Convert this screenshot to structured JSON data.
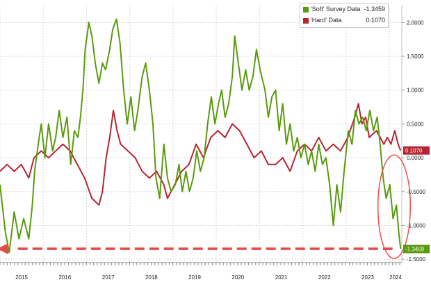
{
  "chart_data": {
    "type": "line",
    "x_range": [
      "2015-01-01",
      "2024-04-15"
    ],
    "ylim": [
      -1.55,
      2.25
    ],
    "ytick_labels": [
      "2.0000",
      "1.5000",
      "1.0000",
      "0.5000",
      "0.0000",
      "-0.5000",
      "-1.0000",
      "-1.5000"
    ],
    "ytick_values": [
      2.0,
      1.5,
      1.0,
      0.5,
      0.0,
      -0.5,
      -1.0,
      -1.5
    ],
    "xtick_labels": [
      "2015",
      "2016",
      "2017",
      "2018",
      "2019",
      "2020",
      "2021",
      "2022",
      "2023",
      "2024"
    ],
    "grid": true,
    "legend_position": "top-right",
    "series": [
      {
        "name": "'Soft' Survey Data",
        "last_value": "-1.3459",
        "color": "#5a9a0e",
        "points": [
          [
            "2015-01-01",
            -0.4
          ],
          [
            "2015-02-15",
            -1.1
          ],
          [
            "2015-03-20",
            -1.4
          ],
          [
            "2015-05-01",
            -0.8
          ],
          [
            "2015-06-10",
            -1.2
          ],
          [
            "2015-07-20",
            -0.9
          ],
          [
            "2015-09-01",
            -1.2
          ],
          [
            "2015-10-01",
            -0.7
          ],
          [
            "2015-10-20",
            -0.2
          ],
          [
            "2015-11-20",
            0.2
          ],
          [
            "2015-12-15",
            0.5
          ],
          [
            "2016-01-15",
            0.0
          ],
          [
            "2016-02-15",
            0.5
          ],
          [
            "2016-03-20",
            0.1
          ],
          [
            "2016-04-15",
            0.3
          ],
          [
            "2016-05-15",
            0.7
          ],
          [
            "2016-06-15",
            0.3
          ],
          [
            "2016-07-20",
            0.6
          ],
          [
            "2016-08-20",
            -0.1
          ],
          [
            "2016-09-20",
            0.4
          ],
          [
            "2016-10-20",
            0.3
          ],
          [
            "2016-11-10",
            0.6
          ],
          [
            "2016-12-01",
            1.0
          ],
          [
            "2016-12-20",
            1.6
          ],
          [
            "2017-01-20",
            2.0
          ],
          [
            "2017-02-15",
            1.8
          ],
          [
            "2017-03-15",
            1.4
          ],
          [
            "2017-04-15",
            1.1
          ],
          [
            "2017-05-15",
            1.4
          ],
          [
            "2017-06-10",
            1.3
          ],
          [
            "2017-07-15",
            1.6
          ],
          [
            "2017-08-10",
            1.9
          ],
          [
            "2017-09-10",
            2.05
          ],
          [
            "2017-10-10",
            1.7
          ],
          [
            "2017-11-10",
            1.0
          ],
          [
            "2017-12-10",
            0.5
          ],
          [
            "2018-01-10",
            0.9
          ],
          [
            "2018-02-10",
            0.4
          ],
          [
            "2018-03-10",
            0.7
          ],
          [
            "2018-04-15",
            1.2
          ],
          [
            "2018-05-15",
            1.4
          ],
          [
            "2018-06-15",
            1.0
          ],
          [
            "2018-07-15",
            0.5
          ],
          [
            "2018-08-10",
            -0.3
          ],
          [
            "2018-09-10",
            -0.6
          ],
          [
            "2018-10-15",
            0.2
          ],
          [
            "2018-11-15",
            -0.3
          ],
          [
            "2018-12-15",
            -0.5
          ],
          [
            "2019-01-20",
            -0.4
          ],
          [
            "2019-02-20",
            -0.1
          ],
          [
            "2019-03-20",
            -0.5
          ],
          [
            "2019-04-20",
            -0.2
          ],
          [
            "2019-05-20",
            -0.5
          ],
          [
            "2019-06-20",
            -0.3
          ],
          [
            "2019-07-20",
            0.1
          ],
          [
            "2019-08-20",
            -0.2
          ],
          [
            "2019-09-20",
            0.0
          ],
          [
            "2019-10-20",
            0.5
          ],
          [
            "2019-11-20",
            0.9
          ],
          [
            "2019-12-20",
            0.5
          ],
          [
            "2020-01-20",
            0.8
          ],
          [
            "2020-02-15",
            1.0
          ],
          [
            "2020-03-15",
            0.6
          ],
          [
            "2020-04-15",
            0.8
          ],
          [
            "2020-05-15",
            1.2
          ],
          [
            "2020-06-05",
            1.8
          ],
          [
            "2020-07-05",
            1.4
          ],
          [
            "2020-08-05",
            1.0
          ],
          [
            "2020-09-05",
            1.3
          ],
          [
            "2020-10-05",
            1.0
          ],
          [
            "2020-11-05",
            1.2
          ],
          [
            "2020-12-05",
            1.6
          ],
          [
            "2021-01-05",
            1.3
          ],
          [
            "2021-02-15",
            1.0
          ],
          [
            "2021-03-15",
            0.6
          ],
          [
            "2021-04-15",
            0.9
          ],
          [
            "2021-05-15",
            1.0
          ],
          [
            "2021-06-15",
            0.4
          ],
          [
            "2021-07-15",
            0.8
          ],
          [
            "2021-08-15",
            0.2
          ],
          [
            "2021-09-15",
            0.5
          ],
          [
            "2021-10-15",
            0.1
          ],
          [
            "2021-11-15",
            0.3
          ],
          [
            "2021-12-15",
            0.0
          ],
          [
            "2022-01-15",
            0.2
          ],
          [
            "2022-02-15",
            -0.1
          ],
          [
            "2022-03-15",
            0.1
          ],
          [
            "2022-04-15",
            -0.2
          ],
          [
            "2022-05-15",
            0.2
          ],
          [
            "2022-06-15",
            -0.1
          ],
          [
            "2022-07-15",
            0.0
          ],
          [
            "2022-08-15",
            -0.4
          ],
          [
            "2022-09-15",
            -1.0
          ],
          [
            "2022-10-15",
            -0.4
          ],
          [
            "2022-11-15",
            -0.8
          ],
          [
            "2022-12-15",
            -0.2
          ],
          [
            "2023-01-20",
            0.4
          ],
          [
            "2023-02-20",
            0.2
          ],
          [
            "2023-03-20",
            0.7
          ],
          [
            "2023-04-20",
            0.5
          ],
          [
            "2023-05-20",
            0.6
          ],
          [
            "2023-06-20",
            0.4
          ],
          [
            "2023-07-20",
            0.7
          ],
          [
            "2023-08-20",
            0.4
          ],
          [
            "2023-09-20",
            0.6
          ],
          [
            "2023-10-15",
            0.2
          ],
          [
            "2023-11-10",
            -0.3
          ],
          [
            "2023-12-05",
            -0.6
          ],
          [
            "2024-01-05",
            -0.4
          ],
          [
            "2024-02-01",
            -0.9
          ],
          [
            "2024-03-01",
            -0.7
          ],
          [
            "2024-03-20",
            -1.1
          ],
          [
            "2024-04-05",
            -1.35
          ]
        ]
      },
      {
        "name": "'Hard' Data",
        "last_value": "0.1070",
        "color": "#b52531",
        "points": [
          [
            "2015-01-01",
            -0.2
          ],
          [
            "2015-03-01",
            -0.1
          ],
          [
            "2015-05-01",
            -0.2
          ],
          [
            "2015-07-01",
            -0.1
          ],
          [
            "2015-09-01",
            -0.3
          ],
          [
            "2015-10-15",
            0.0
          ],
          [
            "2015-12-15",
            0.1
          ],
          [
            "2016-02-15",
            0.0
          ],
          [
            "2016-04-15",
            0.1
          ],
          [
            "2016-06-15",
            0.2
          ],
          [
            "2016-08-15",
            0.1
          ],
          [
            "2016-10-15",
            -0.1
          ],
          [
            "2016-12-15",
            -0.3
          ],
          [
            "2017-02-15",
            -0.6
          ],
          [
            "2017-04-15",
            -0.7
          ],
          [
            "2017-05-15",
            -0.5
          ],
          [
            "2017-06-15",
            0.0
          ],
          [
            "2017-07-15",
            0.3
          ],
          [
            "2017-08-15",
            0.7
          ],
          [
            "2017-09-15",
            0.4
          ],
          [
            "2017-10-15",
            0.2
          ],
          [
            "2017-12-15",
            0.1
          ],
          [
            "2018-02-15",
            0.0
          ],
          [
            "2018-04-15",
            -0.2
          ],
          [
            "2018-06-15",
            -0.3
          ],
          [
            "2018-08-15",
            -0.2
          ],
          [
            "2018-10-15",
            -0.4
          ],
          [
            "2018-11-15",
            -0.6
          ],
          [
            "2019-01-15",
            -0.4
          ],
          [
            "2019-03-15",
            -0.2
          ],
          [
            "2019-05-15",
            -0.1
          ],
          [
            "2019-07-15",
            0.2
          ],
          [
            "2019-09-15",
            0.0
          ],
          [
            "2019-11-15",
            0.3
          ],
          [
            "2020-01-15",
            0.4
          ],
          [
            "2020-03-15",
            0.3
          ],
          [
            "2020-05-15",
            0.5
          ],
          [
            "2020-07-15",
            0.4
          ],
          [
            "2020-09-15",
            0.2
          ],
          [
            "2020-11-15",
            0.0
          ],
          [
            "2021-01-15",
            0.1
          ],
          [
            "2021-03-15",
            -0.1
          ],
          [
            "2021-05-15",
            -0.1
          ],
          [
            "2021-07-15",
            0.0
          ],
          [
            "2021-09-15",
            -0.2
          ],
          [
            "2021-11-15",
            0.1
          ],
          [
            "2022-01-15",
            0.2
          ],
          [
            "2022-03-15",
            0.1
          ],
          [
            "2022-05-15",
            0.3
          ],
          [
            "2022-07-15",
            0.1
          ],
          [
            "2022-09-15",
            0.2
          ],
          [
            "2022-11-15",
            0.1
          ],
          [
            "2023-01-15",
            0.3
          ],
          [
            "2023-03-15",
            0.6
          ],
          [
            "2023-04-15",
            0.8
          ],
          [
            "2023-05-15",
            0.5
          ],
          [
            "2023-06-15",
            0.6
          ],
          [
            "2023-07-15",
            0.3
          ],
          [
            "2023-09-15",
            0.4
          ],
          [
            "2023-11-15",
            0.2
          ],
          [
            "2023-12-15",
            0.3
          ],
          [
            "2024-01-15",
            0.2
          ],
          [
            "2024-02-15",
            0.4
          ],
          [
            "2024-03-15",
            0.2
          ],
          [
            "2024-04-05",
            0.107
          ]
        ]
      }
    ],
    "annotations": {
      "ellipse_color": "#ef4e4e",
      "arrow_color": "#e84a4a",
      "arrow_level": -1.3459
    }
  }
}
